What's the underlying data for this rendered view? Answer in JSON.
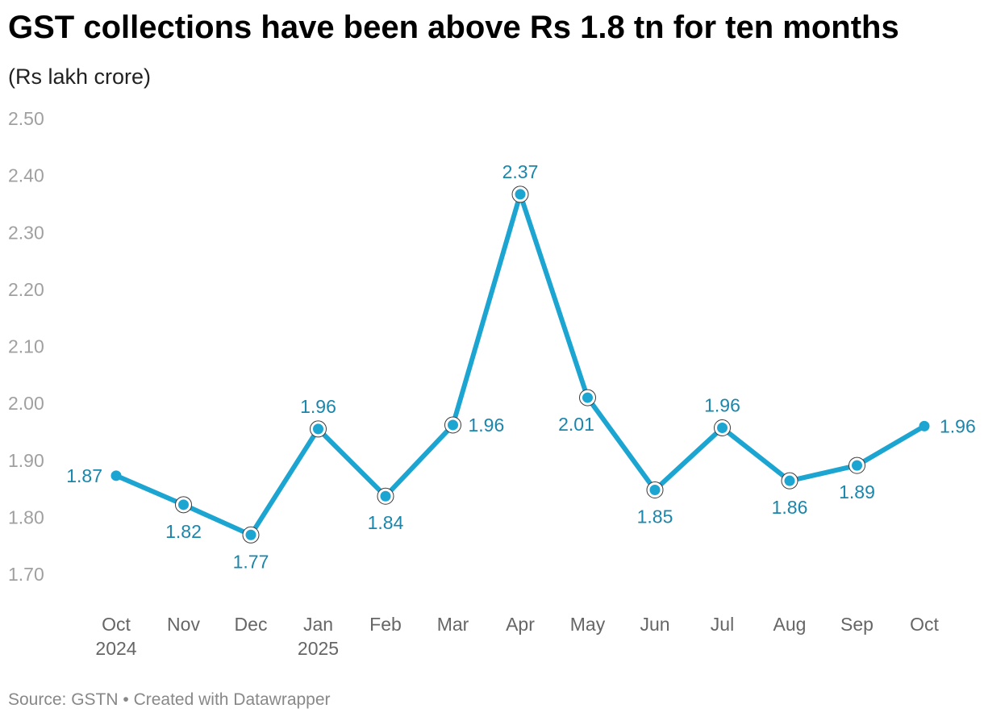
{
  "title": "GST collections have been above Rs 1.8 tn for ten months",
  "subtitle": "(Rs lakh crore)",
  "source": "Source: GSTN",
  "credit": "Created with Datawrapper",
  "colors": {
    "line": "#1da5d2",
    "label": "#1a86ab",
    "tick": "#a0a0a0"
  },
  "chart_data": {
    "type": "line",
    "categories": [
      {
        "month": "Oct",
        "year": "2024"
      },
      {
        "month": "Nov",
        "year": ""
      },
      {
        "month": "Dec",
        "year": ""
      },
      {
        "month": "Jan",
        "year": "2025"
      },
      {
        "month": "Feb",
        "year": ""
      },
      {
        "month": "Mar",
        "year": ""
      },
      {
        "month": "Apr",
        "year": ""
      },
      {
        "month": "May",
        "year": ""
      },
      {
        "month": "Jun",
        "year": ""
      },
      {
        "month": "Jul",
        "year": ""
      },
      {
        "month": "Aug",
        "year": ""
      },
      {
        "month": "Sep",
        "year": ""
      },
      {
        "month": "Oct",
        "year": ""
      }
    ],
    "values": [
      1.873,
      1.822,
      1.769,
      1.955,
      1.837,
      1.962,
      2.367,
      2.01,
      1.848,
      1.957,
      1.864,
      1.891,
      1.96
    ],
    "labels": [
      "1.87",
      "1.82",
      "1.77",
      "1.96",
      "1.84",
      "1.96",
      "2.37",
      "2.01",
      "1.85",
      "1.96",
      "1.86",
      "1.89",
      "1.96"
    ],
    "ylim": [
      1.7,
      2.5
    ],
    "yticks": [
      "1.70",
      "1.80",
      "1.90",
      "2.00",
      "2.10",
      "2.20",
      "2.30",
      "2.40",
      "2.50"
    ],
    "grid": false,
    "legend": "none"
  }
}
